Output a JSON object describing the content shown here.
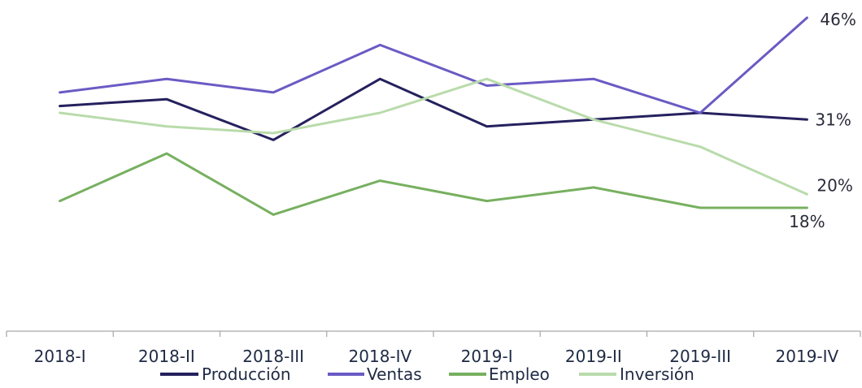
{
  "chart_data": {
    "type": "line",
    "title": "",
    "xlabel": "",
    "ylabel": "",
    "categories": [
      "2018-I",
      "2018-II",
      "2018-III",
      "2018-IV",
      "2019-I",
      "2019-II",
      "2019-III",
      "2019-IV"
    ],
    "ylim": [
      0,
      50
    ],
    "grid": false,
    "legend_position": "bottom",
    "series": [
      {
        "name": "Producción",
        "color": "#25215e",
        "values": [
          33,
          34,
          28,
          37,
          30,
          31,
          32,
          31
        ],
        "end_label": "31%"
      },
      {
        "name": "Ventas",
        "color": "#6a5bc4",
        "values": [
          35,
          37,
          35,
          42,
          36,
          37,
          32,
          46
        ],
        "end_label": "46%"
      },
      {
        "name": "Empleo",
        "color": "#77b060",
        "values": [
          19,
          26,
          17,
          22,
          19,
          21,
          18,
          18
        ],
        "end_label": "18%"
      },
      {
        "name": "Inversión",
        "color": "#b9dbab",
        "values": [
          32,
          30,
          29,
          32,
          37,
          31,
          27,
          20
        ],
        "end_label": "20%"
      }
    ]
  }
}
